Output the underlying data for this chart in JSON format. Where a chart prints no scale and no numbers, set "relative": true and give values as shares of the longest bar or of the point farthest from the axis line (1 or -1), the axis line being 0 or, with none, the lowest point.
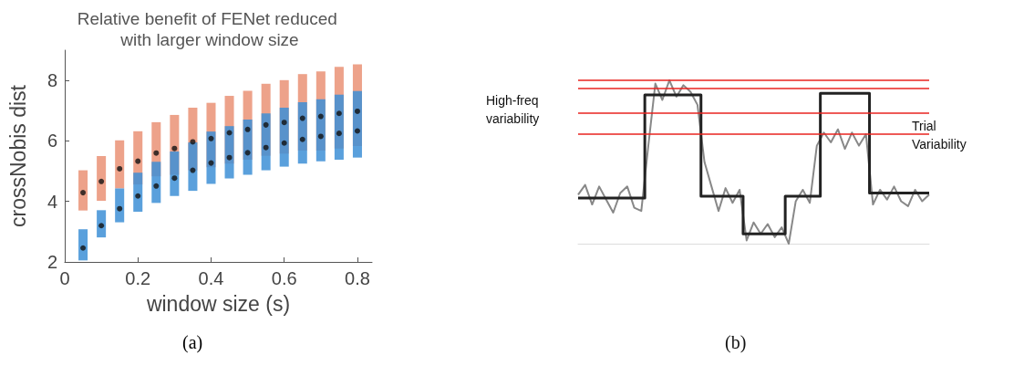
{
  "chart_data": [
    {
      "type": "bar",
      "title": "Relative benefit of FENet reduced with larger window size",
      "xlabel": "window size (s)",
      "ylabel": "crossNobis dist",
      "x": [
        0.05,
        0.1,
        0.15,
        0.2,
        0.25,
        0.3,
        0.35,
        0.4,
        0.45,
        0.5,
        0.55,
        0.6,
        0.65,
        0.7,
        0.75,
        0.8
      ],
      "xlim": [
        0,
        0.84
      ],
      "xticks": [
        0,
        0.2,
        0.4,
        0.6,
        0.8
      ],
      "ylim": [
        2,
        9
      ],
      "yticks": [
        2,
        4,
        6,
        8
      ],
      "marker": "circle",
      "annotations": [
        "(a)"
      ],
      "series": [
        {
          "color": "#eda28a",
          "base": [
            3.7,
            4.02,
            4.43,
            4.56,
            4.83,
            4.88,
            5.03,
            5.13,
            5.25,
            5.38,
            5.51,
            5.58,
            5.68,
            5.68,
            5.75,
            5.83
          ],
          "values": [
            1.33,
            1.48,
            1.59,
            1.76,
            1.79,
            1.98,
            2.07,
            2.13,
            2.24,
            2.28,
            2.38,
            2.43,
            2.53,
            2.62,
            2.7,
            2.7
          ]
        },
        {
          "color": "#3d8fd6",
          "base": [
            2.05,
            2.81,
            3.31,
            3.66,
            3.95,
            4.18,
            4.35,
            4.58,
            4.76,
            4.88,
            5.03,
            5.15,
            5.25,
            5.33,
            5.38,
            5.45
          ],
          "values": [
            1.03,
            0.9,
            1.12,
            1.29,
            1.36,
            1.47,
            1.6,
            1.73,
            1.73,
            1.83,
            1.88,
            1.95,
            2.03,
            2.05,
            2.15,
            2.2
          ]
        },
        {
          "type": "scatter",
          "color": "#111111",
          "values": [
            4.29,
            4.66,
            5.08,
            5.33,
            5.6,
            5.75,
            5.97,
            6.08,
            6.27,
            6.38,
            6.53,
            6.61,
            6.75,
            6.81,
            6.91,
            6.98
          ]
        },
        {
          "type": "scatter",
          "color": "#111111",
          "values": [
            2.46,
            3.2,
            3.76,
            4.18,
            4.51,
            4.77,
            5.03,
            5.27,
            5.45,
            5.61,
            5.78,
            5.93,
            6.05,
            6.15,
            6.25,
            6.33
          ]
        }
      ]
    },
    {
      "type": "line",
      "relative": true,
      "categories": [
        null,
        null,
        null,
        null,
        null,
        null,
        null,
        null,
        null,
        null,
        null,
        null,
        null,
        null,
        null,
        null,
        null,
        null,
        null,
        null,
        null,
        null,
        null,
        null,
        null,
        null,
        null,
        null,
        null,
        null,
        null,
        null,
        null,
        null,
        null,
        null,
        null,
        null,
        null,
        null,
        null,
        null,
        null,
        null,
        null,
        null,
        null,
        null,
        null,
        null,
        null
      ],
      "annotations": [
        "High-freq variability",
        "Trial Variability",
        "(b)"
      ],
      "ref_lines": [
        {
          "axis": "y",
          "value": 1.0,
          "color": "#e8231f"
        },
        {
          "axis": "y",
          "value": 0.8,
          "color": "#e8231f"
        },
        {
          "axis": "y",
          "value": 0.95,
          "color": "#e8231f"
        },
        {
          "axis": "y",
          "value": 0.67,
          "color": "#e8231f"
        }
      ],
      "series": [
        {
          "type": "step",
          "color": "#222222",
          "values": [
            0.28,
            0.28,
            0.28,
            0.28,
            0.28,
            0.28,
            0.28,
            0.28,
            0.28,
            0.28,
            0.91,
            0.91,
            0.91,
            0.91,
            0.91,
            0.91,
            0.91,
            0.91,
            0.29,
            0.29,
            0.29,
            0.29,
            0.29,
            0.29,
            0.06,
            0.06,
            0.06,
            0.06,
            0.06,
            0.06,
            0.29,
            0.29,
            0.29,
            0.29,
            0.29,
            0.92,
            0.92,
            0.92,
            0.92,
            0.92,
            0.92,
            0.92,
            0.31,
            0.31,
            0.31,
            0.31,
            0.31,
            0.31,
            0.31,
            0.31,
            0.31
          ]
        },
        {
          "color": "#888888",
          "values": [
            0.3,
            0.36,
            0.24,
            0.35,
            0.27,
            0.19,
            0.31,
            0.35,
            0.22,
            0.2,
            0.6,
            0.98,
            0.88,
            1.0,
            0.9,
            0.97,
            0.93,
            0.85,
            0.5,
            0.35,
            0.2,
            0.34,
            0.25,
            0.33,
            0.02,
            0.13,
            0.06,
            0.12,
            0.04,
            0.1,
            0.0,
            0.26,
            0.33,
            0.25,
            0.6,
            0.68,
            0.62,
            0.7,
            0.58,
            0.68,
            0.6,
            0.67,
            0.24,
            0.33,
            0.27,
            0.35,
            0.26,
            0.23,
            0.33,
            0.26,
            0.3
          ]
        }
      ]
    }
  ]
}
